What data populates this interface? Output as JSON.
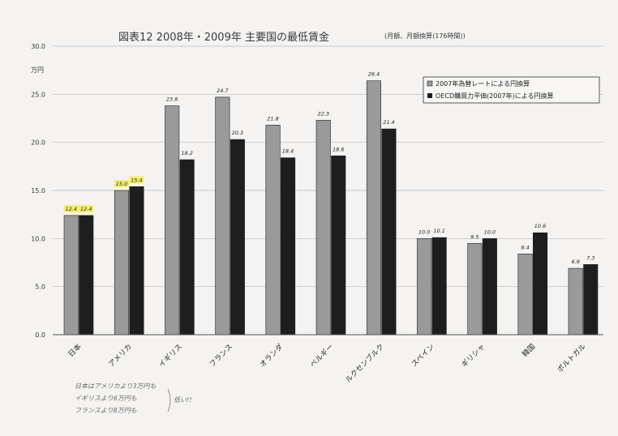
{
  "chart_data": {
    "type": "bar",
    "title": "図表12 2008年・2009年 主要国の最低賃金",
    "subtitle": "(月額、月額換算(176時間))",
    "ylabel": "万円",
    "ylim": [
      0,
      30
    ],
    "yticks": [
      "0.0",
      "5.0",
      "10.0",
      "15.0",
      "20.0",
      "25.0",
      "30.0"
    ],
    "grid": true,
    "legend_position": "top-right",
    "categories": [
      "日本",
      "アメリカ",
      "イギリス",
      "フランス",
      "オランダ",
      "ベルギー",
      "ルクセンブルク",
      "スペイン",
      "ギリシャ",
      "韓国",
      "ポルトガル"
    ],
    "series": [
      {
        "name": "2007年為替レートによる円換算",
        "color": "#9a9a9a",
        "values": [
          12.4,
          15.0,
          23.8,
          24.7,
          21.8,
          22.3,
          26.4,
          10.0,
          9.5,
          8.4,
          6.9
        ],
        "labels": [
          "12.4",
          "15.0",
          "23.8",
          "24.7",
          "21.8",
          "22.3",
          "26.4",
          "10.0",
          "9.5",
          "8.4",
          "6.9"
        ]
      },
      {
        "name": "OECD購買力平価(2007年)による円換算",
        "color": "#1e1e1e",
        "values": [
          12.4,
          15.4,
          18.2,
          20.3,
          18.4,
          18.6,
          21.4,
          10.1,
          10.0,
          10.6,
          7.3
        ],
        "labels": [
          "12.4",
          "15.4",
          "18.2",
          "20.3",
          "18.4",
          "18.6",
          "21.4",
          "10.1",
          "10.0",
          "10.6",
          "7.3"
        ]
      }
    ],
    "highlighted_categories": [
      0,
      1
    ]
  },
  "annotation": {
    "handwritten_lines": [
      "日本はアメリカより3万円も",
      "イギリスより6万円も",
      "フランスより8万円も"
    ],
    "handwritten_side": "低い!!"
  }
}
